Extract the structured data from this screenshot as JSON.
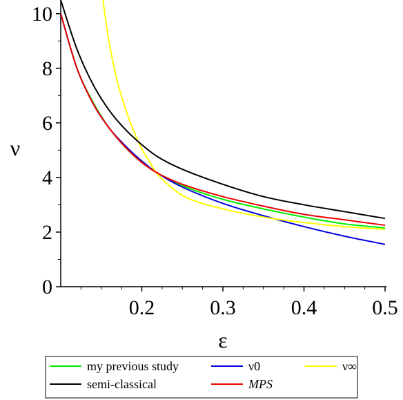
{
  "chart_data": {
    "type": "line",
    "title": "",
    "xlabel": "ε",
    "ylabel": "ν",
    "xlim": [
      0.1,
      0.5
    ],
    "ylim": [
      0,
      10.5
    ],
    "grid": false,
    "legend_position": "bottom",
    "x_ticks": [
      {
        "value": 0.2,
        "label": "0.2"
      },
      {
        "value": 0.3,
        "label": "0.3"
      },
      {
        "value": 0.4,
        "label": "0.4"
      },
      {
        "value": 0.5,
        "label": "0.5"
      }
    ],
    "y_ticks": [
      {
        "value": 0,
        "label": "0"
      },
      {
        "value": 2,
        "label": "2"
      },
      {
        "value": 4,
        "label": "4"
      },
      {
        "value": 6,
        "label": "6"
      },
      {
        "value": 8,
        "label": "8"
      },
      {
        "value": 10,
        "label": "10"
      }
    ],
    "series": [
      {
        "name": "my previous study",
        "color": "#00ee00",
        "x": [
          0.1,
          0.12,
          0.14,
          0.16,
          0.18,
          0.2,
          0.22,
          0.25,
          0.3,
          0.35,
          0.4,
          0.45,
          0.5
        ],
        "y": [
          10.0,
          8.0,
          6.75,
          5.8,
          5.1,
          4.55,
          4.15,
          3.7,
          3.2,
          2.85,
          2.55,
          2.3,
          2.15
        ]
      },
      {
        "name": "ν0",
        "color": "#0000dd",
        "x": [
          0.1,
          0.12,
          0.14,
          0.16,
          0.18,
          0.2,
          0.22,
          0.25,
          0.3,
          0.35,
          0.4,
          0.45,
          0.5
        ],
        "y": [
          10.0,
          8.0,
          6.7,
          5.8,
          5.15,
          4.6,
          4.15,
          3.65,
          3.05,
          2.6,
          2.2,
          1.85,
          1.55
        ]
      },
      {
        "name": "ν∞",
        "color": "#ffff00",
        "x": [
          0.152,
          0.16,
          0.17,
          0.18,
          0.19,
          0.2,
          0.21,
          0.22,
          0.24,
          0.26,
          0.3,
          0.35,
          0.4,
          0.45,
          0.5
        ],
        "y": [
          10.5,
          8.9,
          7.5,
          6.5,
          5.7,
          5.05,
          4.55,
          4.1,
          3.55,
          3.2,
          2.85,
          2.55,
          2.35,
          2.2,
          2.1
        ]
      },
      {
        "name": "semi-classical",
        "color": "#000000",
        "x": [
          0.1,
          0.12,
          0.14,
          0.16,
          0.18,
          0.2,
          0.22,
          0.25,
          0.3,
          0.35,
          0.4,
          0.45,
          0.5
        ],
        "y": [
          10.5,
          8.7,
          7.4,
          6.45,
          5.75,
          5.2,
          4.75,
          4.3,
          3.75,
          3.3,
          3.0,
          2.75,
          2.5
        ]
      },
      {
        "name": "MPS",
        "color": "#ee0000",
        "italic": true,
        "x": [
          0.1,
          0.12,
          0.14,
          0.16,
          0.18,
          0.2,
          0.22,
          0.25,
          0.3,
          0.35,
          0.4,
          0.45,
          0.5
        ],
        "y": [
          10.0,
          8.0,
          6.7,
          5.8,
          5.1,
          4.55,
          4.15,
          3.75,
          3.3,
          2.95,
          2.65,
          2.45,
          2.25
        ]
      }
    ],
    "legend_rows": [
      [
        "my previous study",
        "ν0",
        "ν∞"
      ],
      [
        "semi-classical",
        "MPS"
      ]
    ]
  }
}
